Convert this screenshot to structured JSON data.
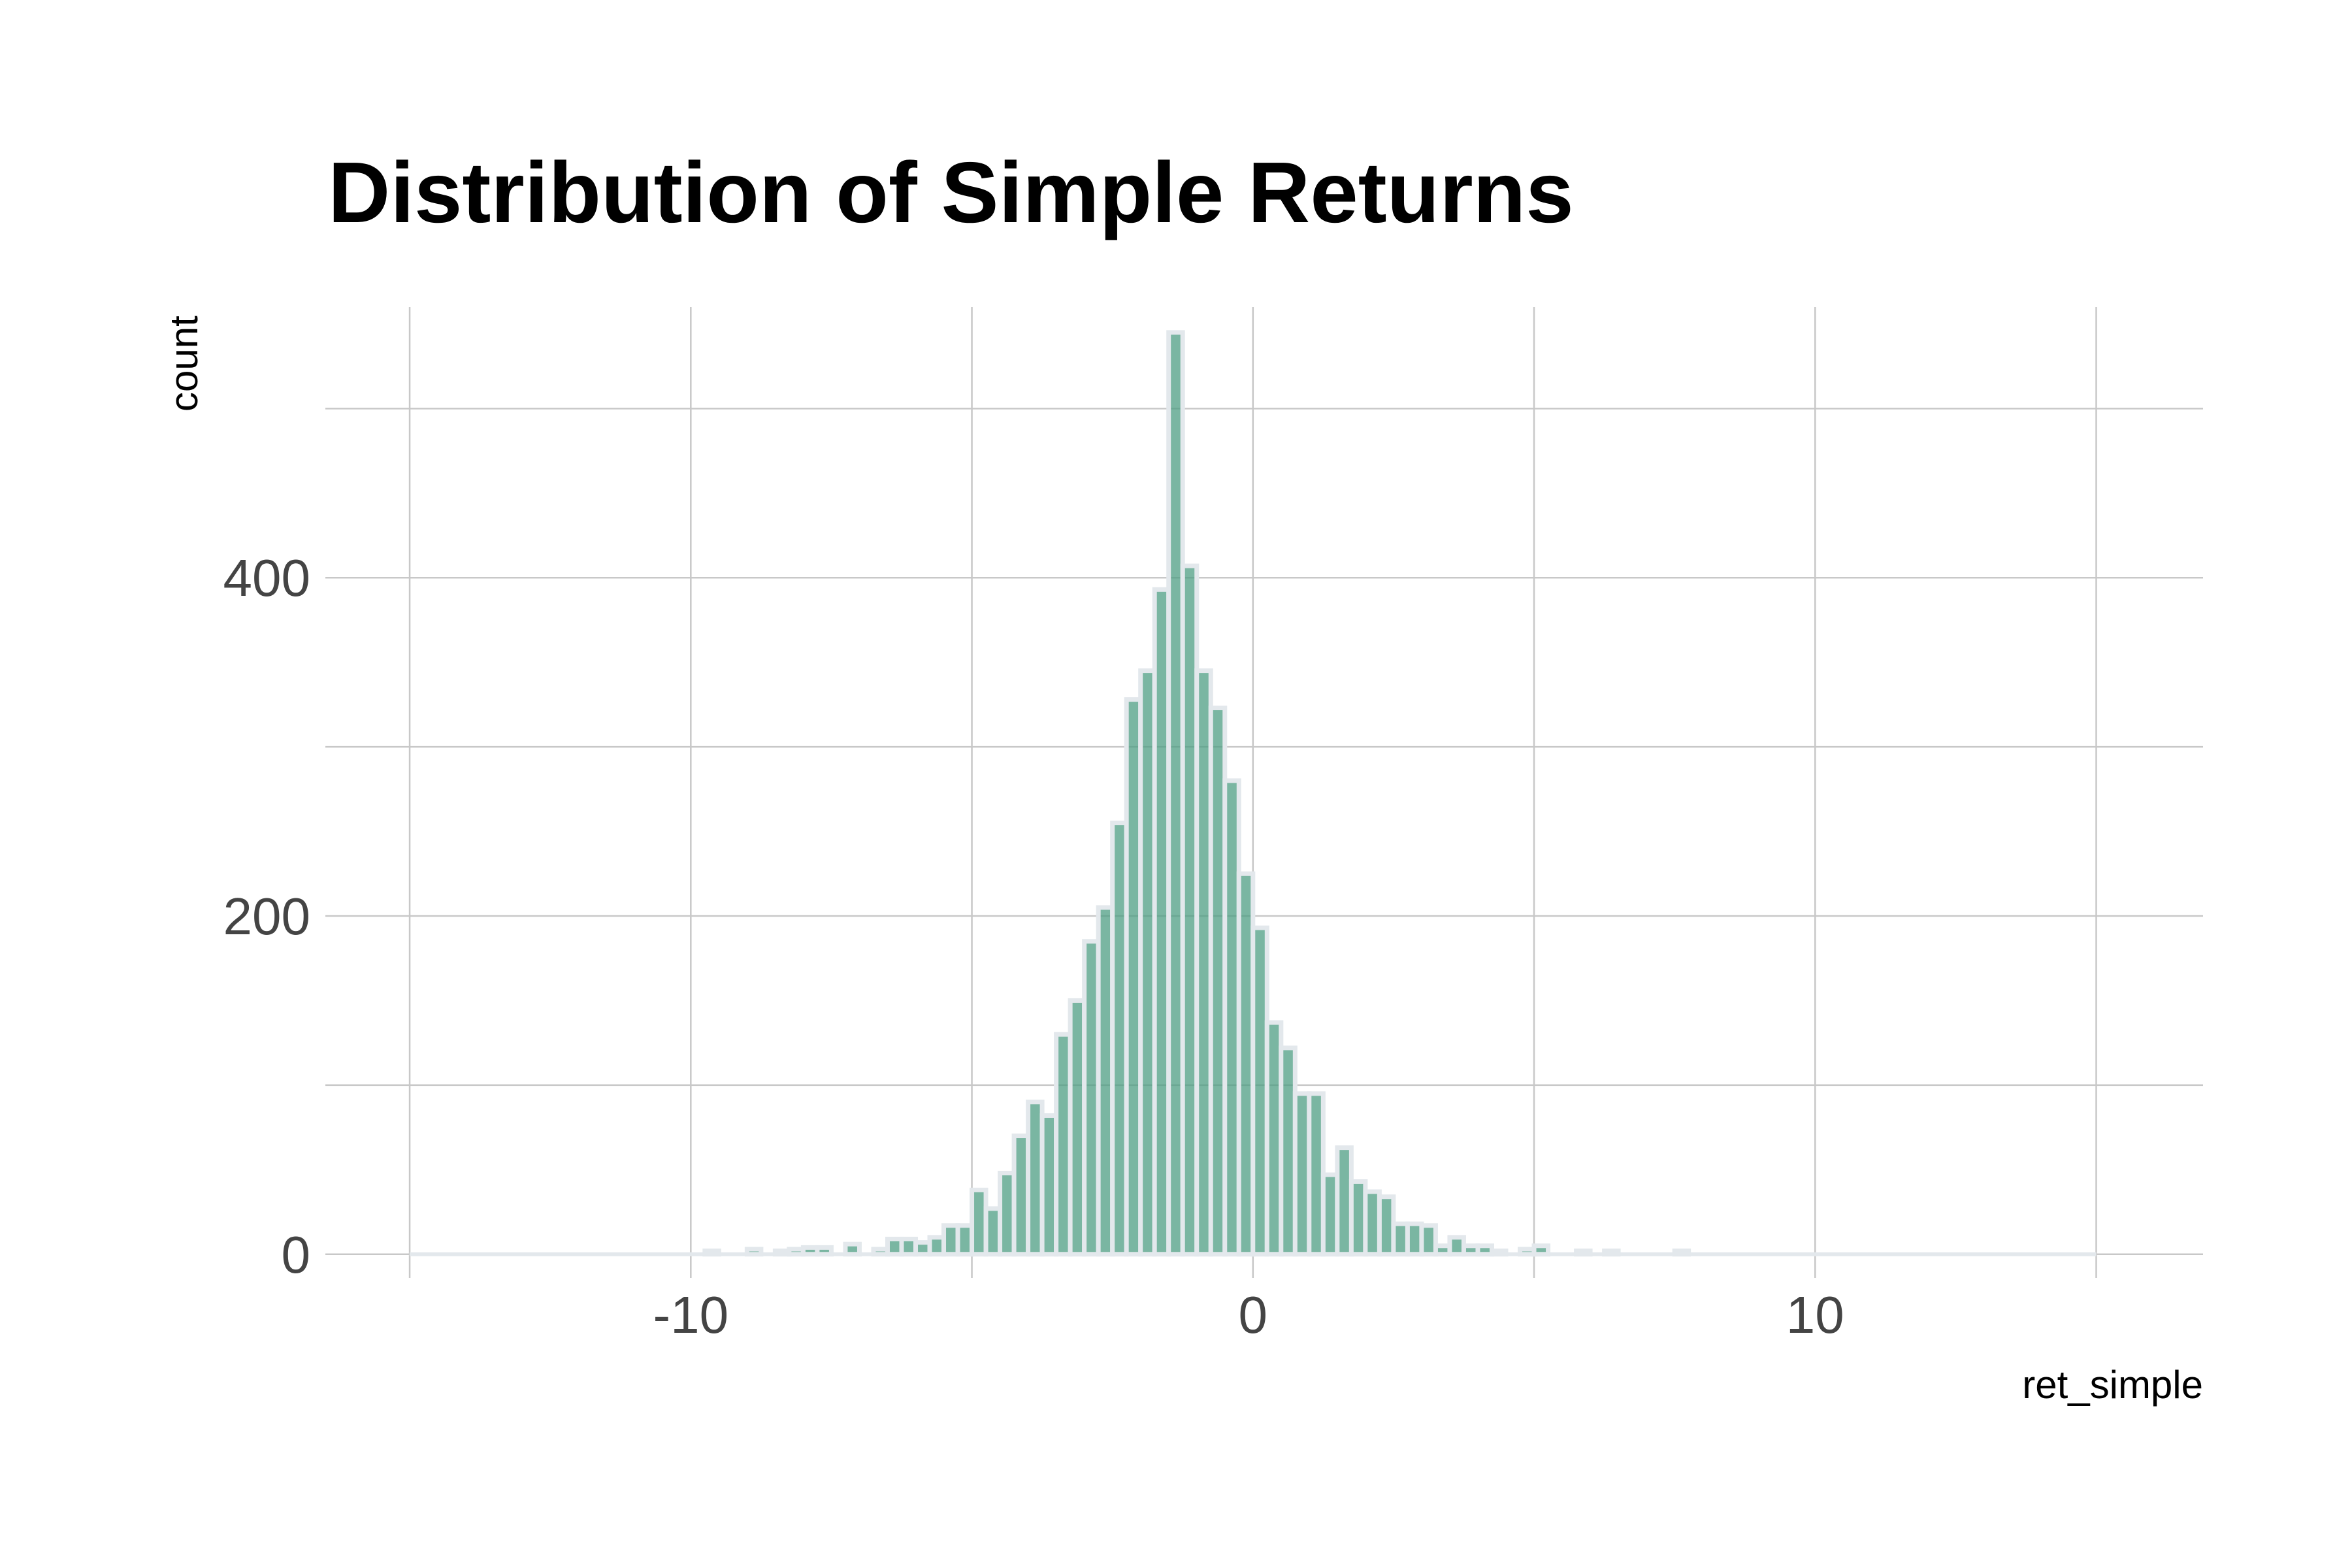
{
  "chart_data": {
    "type": "bar",
    "title": "Distribution of Simple Returns",
    "xlabel": "ret_simple",
    "ylabel": "count",
    "xlim": [
      -16.5,
      16.9
    ],
    "ylim": [
      -14,
      560
    ],
    "x_ticks": [
      -10,
      0,
      10
    ],
    "x_tick_labels": [
      "-10",
      "0",
      "10"
    ],
    "x_grid": [
      -15,
      -10,
      -5,
      0,
      5,
      10,
      15
    ],
    "y_ticks": [
      0,
      200,
      400
    ],
    "y_tick_labels": [
      "0",
      "200",
      "400"
    ],
    "y_grid": [
      0,
      100,
      200,
      300,
      400,
      500
    ],
    "grid": true,
    "legend": "none",
    "bin_width": 0.25,
    "bar_fill": "#4e9e83",
    "bar_stroke": "#e3e8ec",
    "bins": [
      {
        "x": -9.625,
        "count": 2
      },
      {
        "x": -8.875,
        "count": 3
      },
      {
        "x": -8.375,
        "count": 2
      },
      {
        "x": -8.125,
        "count": 3
      },
      {
        "x": -7.875,
        "count": 4
      },
      {
        "x": -7.625,
        "count": 4
      },
      {
        "x": -7.125,
        "count": 6
      },
      {
        "x": -6.625,
        "count": 3
      },
      {
        "x": -6.375,
        "count": 9
      },
      {
        "x": -6.125,
        "count": 9
      },
      {
        "x": -5.875,
        "count": 7
      },
      {
        "x": -5.625,
        "count": 10
      },
      {
        "x": -5.375,
        "count": 17
      },
      {
        "x": -5.125,
        "count": 17
      },
      {
        "x": -4.875,
        "count": 38
      },
      {
        "x": -4.625,
        "count": 27
      },
      {
        "x": -4.375,
        "count": 48
      },
      {
        "x": -4.125,
        "count": 70
      },
      {
        "x": -3.875,
        "count": 90
      },
      {
        "x": -3.625,
        "count": 82
      },
      {
        "x": -3.375,
        "count": 130
      },
      {
        "x": -3.125,
        "count": 150
      },
      {
        "x": -2.875,
        "count": 185
      },
      {
        "x": -2.625,
        "count": 205
      },
      {
        "x": -2.375,
        "count": 255
      },
      {
        "x": -2.125,
        "count": 328
      },
      {
        "x": -1.875,
        "count": 345
      },
      {
        "x": -1.625,
        "count": 393
      },
      {
        "x": -1.375,
        "count": 545
      },
      {
        "x": -1.125,
        "count": 407
      },
      {
        "x": -0.875,
        "count": 345
      },
      {
        "x": -0.625,
        "count": 323
      },
      {
        "x": -0.375,
        "count": 280
      },
      {
        "x": -0.125,
        "count": 225
      },
      {
        "x": 0.125,
        "count": 193
      },
      {
        "x": 0.375,
        "count": 137
      },
      {
        "x": 0.625,
        "count": 122
      },
      {
        "x": 0.875,
        "count": 95
      },
      {
        "x": 1.125,
        "count": 95
      },
      {
        "x": 1.375,
        "count": 47
      },
      {
        "x": 1.625,
        "count": 63
      },
      {
        "x": 1.875,
        "count": 43
      },
      {
        "x": 2.125,
        "count": 37
      },
      {
        "x": 2.375,
        "count": 34
      },
      {
        "x": 2.625,
        "count": 18
      },
      {
        "x": 2.875,
        "count": 18
      },
      {
        "x": 3.125,
        "count": 17
      },
      {
        "x": 3.375,
        "count": 5
      },
      {
        "x": 3.625,
        "count": 10
      },
      {
        "x": 3.875,
        "count": 5
      },
      {
        "x": 4.125,
        "count": 5
      },
      {
        "x": 4.375,
        "count": 2
      },
      {
        "x": 4.875,
        "count": 3
      },
      {
        "x": 5.125,
        "count": 5
      },
      {
        "x": 5.875,
        "count": 2
      },
      {
        "x": 6.375,
        "count": 2
      },
      {
        "x": 7.625,
        "count": 2
      }
    ]
  }
}
